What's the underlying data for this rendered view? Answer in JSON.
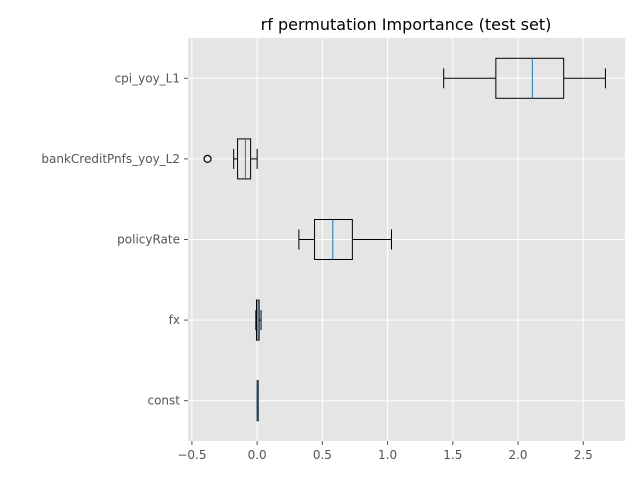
{
  "chart_data": {
    "type": "boxplot",
    "title": "rf permutation Importance (test set)",
    "xlabel": "",
    "ylabel": "",
    "xlim": [
      -0.53,
      2.82
    ],
    "xticks": [
      -0.5,
      0.0,
      0.5,
      1.0,
      1.5,
      2.0,
      2.5
    ],
    "xtick_labels": [
      "−0.5",
      "0.0",
      "0.5",
      "1.0",
      "1.5",
      "2.0",
      "2.5"
    ],
    "grid": true,
    "categories": [
      "cpi_yoy_L1",
      "bankCreditPnfs_yoy_L2",
      "policyRate",
      "fx",
      "const"
    ],
    "boxes": [
      {
        "label": "cpi_yoy_L1",
        "whisker_low": 1.43,
        "q1": 1.83,
        "median": 2.11,
        "q3": 2.35,
        "whisker_high": 2.67,
        "outliers": []
      },
      {
        "label": "bankCreditPnfs_yoy_L2",
        "whisker_low": -0.18,
        "q1": -0.15,
        "median": -0.09,
        "q3": -0.05,
        "whisker_high": 0.0,
        "outliers": [
          -0.38
        ]
      },
      {
        "label": "policyRate",
        "whisker_low": 0.32,
        "q1": 0.44,
        "median": 0.58,
        "q3": 0.73,
        "whisker_high": 1.03,
        "outliers": []
      },
      {
        "label": "fx",
        "whisker_low": -0.01,
        "q1": -0.005,
        "median": 0.005,
        "q3": 0.015,
        "whisker_high": 0.03,
        "outliers": []
      },
      {
        "label": "const",
        "whisker_low": 0.0,
        "q1": 0.0,
        "median": 0.0,
        "q3": 0.0,
        "whisker_high": 0.0,
        "outliers": []
      }
    ],
    "colors": {
      "plot_background": "#e5e5e5",
      "grid": "#ffffff",
      "box_edge": "#000000",
      "median": "#1f77b4",
      "tick_text": "#555555",
      "title_text": "#000000"
    }
  }
}
